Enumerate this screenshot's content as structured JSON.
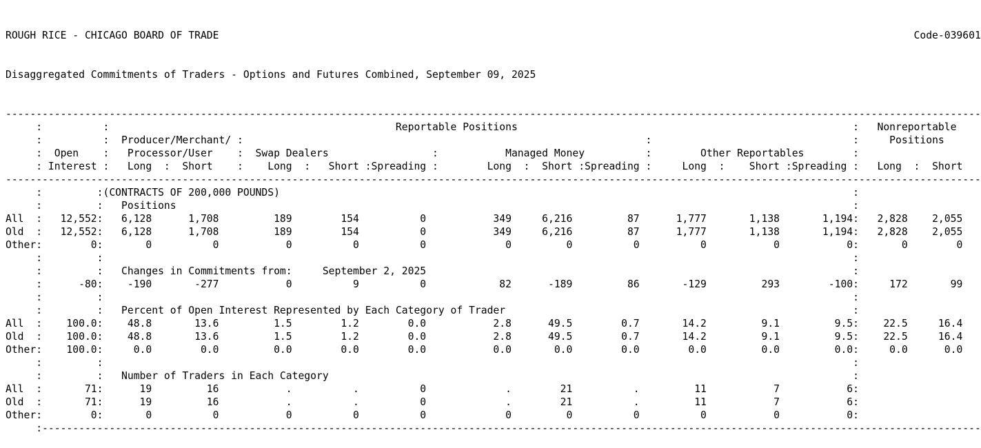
{
  "page": {
    "background": "#ffffff",
    "text_color": "#000000"
  },
  "header": {
    "title": "ROUGH RICE - CHICAGO BOARD OF TRADE",
    "code": "Code-039601",
    "subtitle": "Disaggregated Commitments of Traders - Options and Futures Combined, September 09, 2025"
  },
  "table": {
    "column_headers": {
      "reportable": "Reportable Positions",
      "nonreportable_line1": "Nonreportable",
      "nonreportable_line2": "Positions",
      "open_line1": "Open",
      "open_line2": "Interest",
      "producer_line1": "Producer/Merchant/",
      "producer_line2": "Processor/User",
      "swap_dealers": "Swap Dealers",
      "managed_money": "Managed Money",
      "other_reportables": "Other Reportables",
      "long": "Long",
      "short": "Short",
      "spreading": "Spreading"
    },
    "sections": [
      {
        "id": "positions",
        "pretitle": "(CONTRACTS OF 200,000 POUNDS)",
        "title": "Positions",
        "rows": [
          {
            "label": "All",
            "values": [
              "12,552",
              "6,128",
              "1,708",
              "189",
              "154",
              "0",
              "349",
              "6,216",
              "87",
              "1,777",
              "1,138",
              "1,194",
              "2,828",
              "2,055"
            ]
          },
          {
            "label": "Old",
            "values": [
              "12,552",
              "6,128",
              "1,708",
              "189",
              "154",
              "0",
              "349",
              "6,216",
              "87",
              "1,777",
              "1,138",
              "1,194",
              "2,828",
              "2,055"
            ]
          },
          {
            "label": "Other",
            "values": [
              "0",
              "0",
              "0",
              "0",
              "0",
              "0",
              "0",
              "0",
              "0",
              "0",
              "0",
              "0",
              "0",
              "0"
            ]
          }
        ]
      },
      {
        "id": "changes",
        "title": "Changes in Commitments from:",
        "date": "September 2, 2025",
        "rows": [
          {
            "label": "",
            "values": [
              "-80",
              "-190",
              "-277",
              "0",
              "9",
              "0",
              "82",
              "-189",
              "86",
              "-129",
              "293",
              "-100",
              "172",
              "99"
            ]
          }
        ]
      },
      {
        "id": "percent",
        "title": "Percent of Open Interest Represented by Each Category of Trader",
        "rows": [
          {
            "label": "All",
            "values": [
              "100.0",
              "48.8",
              "13.6",
              "1.5",
              "1.2",
              "0.0",
              "2.8",
              "49.5",
              "0.7",
              "14.2",
              "9.1",
              "9.5",
              "22.5",
              "16.4"
            ]
          },
          {
            "label": "Old",
            "values": [
              "100.0",
              "48.8",
              "13.6",
              "1.5",
              "1.2",
              "0.0",
              "2.8",
              "49.5",
              "0.7",
              "14.2",
              "9.1",
              "9.5",
              "22.5",
              "16.4"
            ]
          },
          {
            "label": "Other",
            "values": [
              "100.0",
              "0.0",
              "0.0",
              "0.0",
              "0.0",
              "0.0",
              "0.0",
              "0.0",
              "0.0",
              "0.0",
              "0.0",
              "0.0",
              "0.0",
              "0.0"
            ]
          }
        ]
      },
      {
        "id": "traders",
        "title": "Number of Traders in Each Category",
        "rows": [
          {
            "label": "All",
            "values": [
              "71",
              "19",
              "16",
              ".",
              ".",
              "0",
              ".",
              "21",
              ".",
              "11",
              "7",
              "6"
            ]
          },
          {
            "label": "Old",
            "values": [
              "71",
              "19",
              "16",
              ".",
              ".",
              "0",
              ".",
              "21",
              ".",
              "11",
              "7",
              "6"
            ]
          },
          {
            "label": "Other",
            "values": [
              "0",
              "0",
              "0",
              "0",
              "0",
              "0",
              "0",
              "0",
              "0",
              "0",
              "0",
              "0"
            ]
          }
        ]
      }
    ]
  }
}
